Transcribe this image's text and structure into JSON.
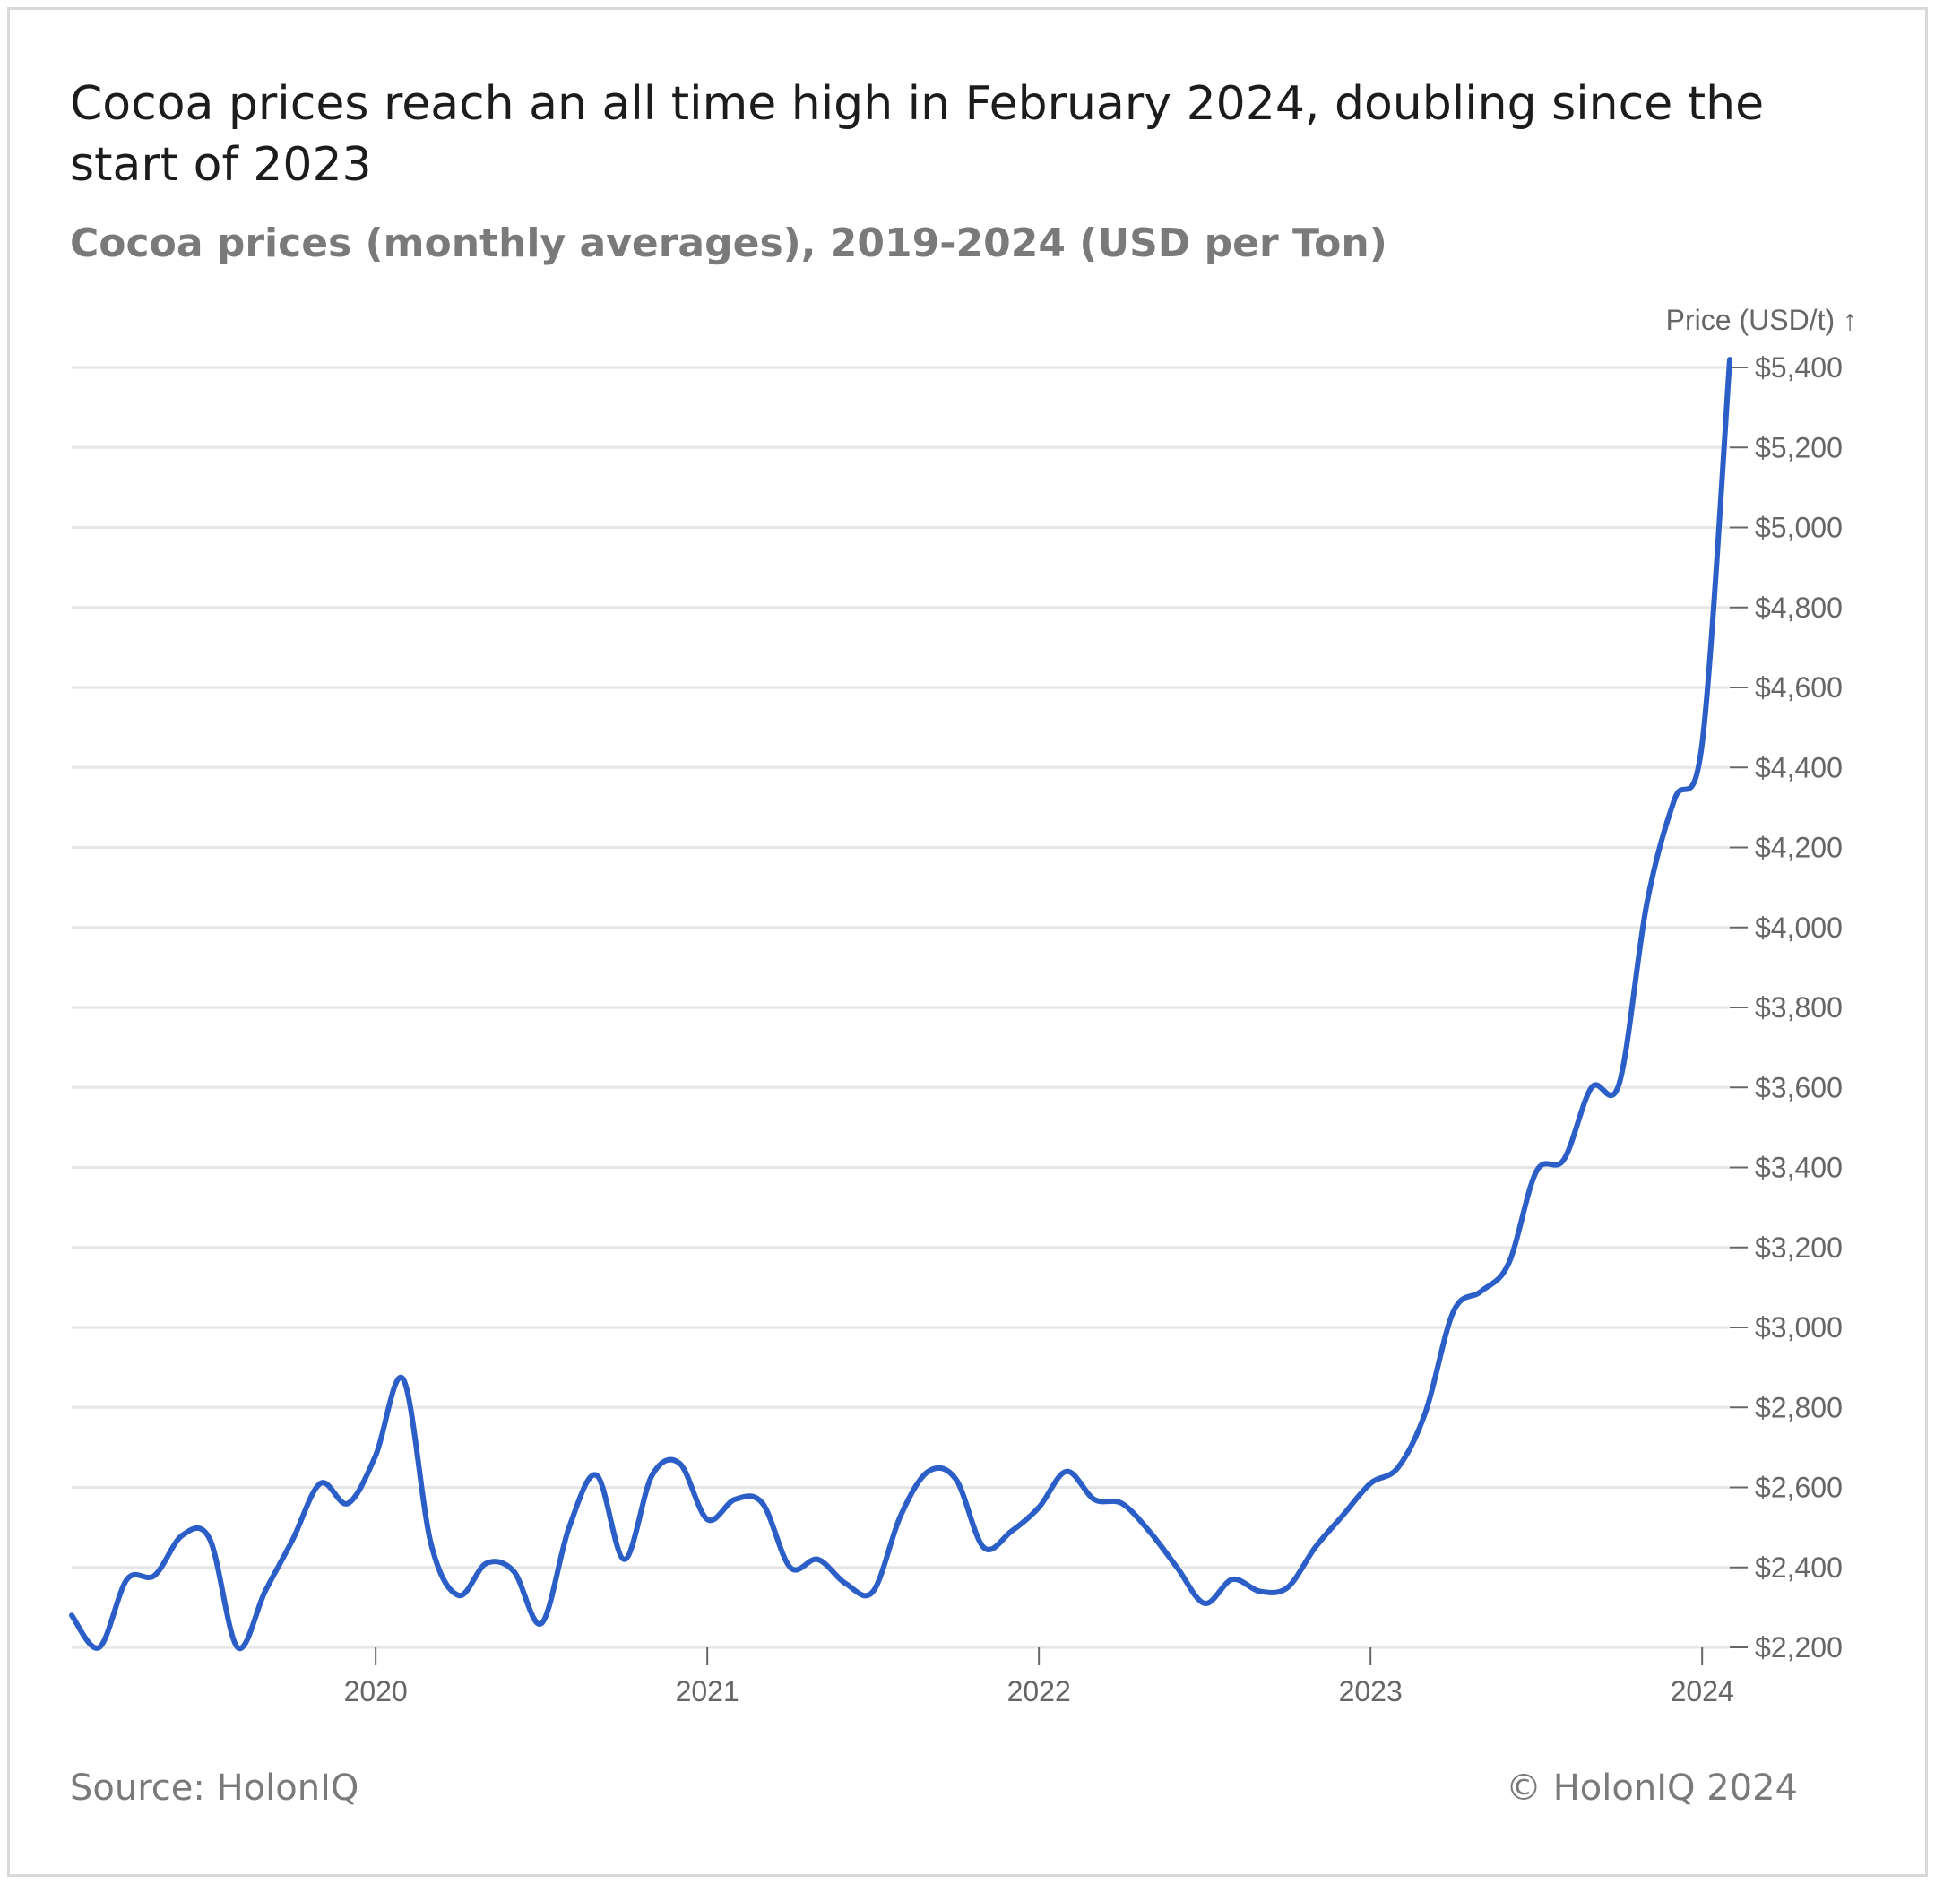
{
  "header": {
    "title": "Cocoa prices reach an all time high in February 2024, doubling since the start of 2023",
    "subtitle": "Cocoa prices (monthly averages), 2019-2024 (USD per Ton)"
  },
  "footer": {
    "source": "Source: HolonIQ",
    "copyright": "© HolonIQ 2024"
  },
  "colors": {
    "line": "#2b5fc7",
    "grid": "#e6e6e6",
    "text": "#666666"
  },
  "chart_data": {
    "type": "line",
    "ylabel": "Price (USD/t) ↑",
    "ylim": [
      2200,
      5400
    ],
    "yticks": [
      2200,
      2400,
      2600,
      2800,
      3000,
      3200,
      3400,
      3600,
      3800,
      4000,
      4200,
      4400,
      4600,
      4800,
      5000,
      5200,
      5400
    ],
    "ytick_labels": [
      "$2,200",
      "$2,400",
      "$2,600",
      "$2,800",
      "$3,000",
      "$3,200",
      "$3,400",
      "$3,600",
      "$3,800",
      "$4,000",
      "$4,200",
      "$4,400",
      "$4,600",
      "$4,800",
      "$5,000",
      "$5,200",
      "$5,400"
    ],
    "xlim": [
      "2019-02",
      "2024-02"
    ],
    "xticks": [
      "2020",
      "2021",
      "2022",
      "2023",
      "2024"
    ],
    "grid": true,
    "series": [
      {
        "x": [
          "2019-02",
          "2019-03",
          "2019-04",
          "2019-05",
          "2019-06",
          "2019-07",
          "2019-08",
          "2019-09",
          "2019-10",
          "2019-11",
          "2019-12",
          "2020-01",
          "2020-02",
          "2020-03",
          "2020-04",
          "2020-05",
          "2020-06",
          "2020-07",
          "2020-08",
          "2020-09",
          "2020-10",
          "2020-11",
          "2020-12",
          "2021-01",
          "2021-02",
          "2021-03",
          "2021-04",
          "2021-05",
          "2021-06",
          "2021-07",
          "2021-08",
          "2021-09",
          "2021-10",
          "2021-11",
          "2021-12",
          "2022-01",
          "2022-02",
          "2022-03",
          "2022-04",
          "2022-05",
          "2022-06",
          "2022-07",
          "2022-08",
          "2022-09",
          "2022-10",
          "2022-11",
          "2022-12",
          "2023-01",
          "2023-02",
          "2023-03",
          "2023-04",
          "2023-05",
          "2023-06",
          "2023-07",
          "2023-08",
          "2023-09",
          "2023-10",
          "2023-11",
          "2023-12",
          "2024-01",
          "2024-02"
        ],
        "values": [
          2280,
          2200,
          2370,
          2380,
          2480,
          2470,
          2200,
          2340,
          2470,
          2610,
          2560,
          2680,
          2870,
          2460,
          2330,
          2410,
          2390,
          2260,
          2500,
          2630,
          2420,
          2630,
          2660,
          2520,
          2570,
          2560,
          2400,
          2420,
          2360,
          2340,
          2530,
          2640,
          2620,
          2450,
          2490,
          2550,
          2640,
          2570,
          2560,
          2490,
          2400,
          2310,
          2370,
          2340,
          2350,
          2450,
          2530,
          2610,
          2650,
          2790,
          3040,
          3090,
          3160,
          3390,
          3420,
          3600,
          3610,
          4060,
          4320,
          4460,
          5420
        ]
      }
    ]
  }
}
